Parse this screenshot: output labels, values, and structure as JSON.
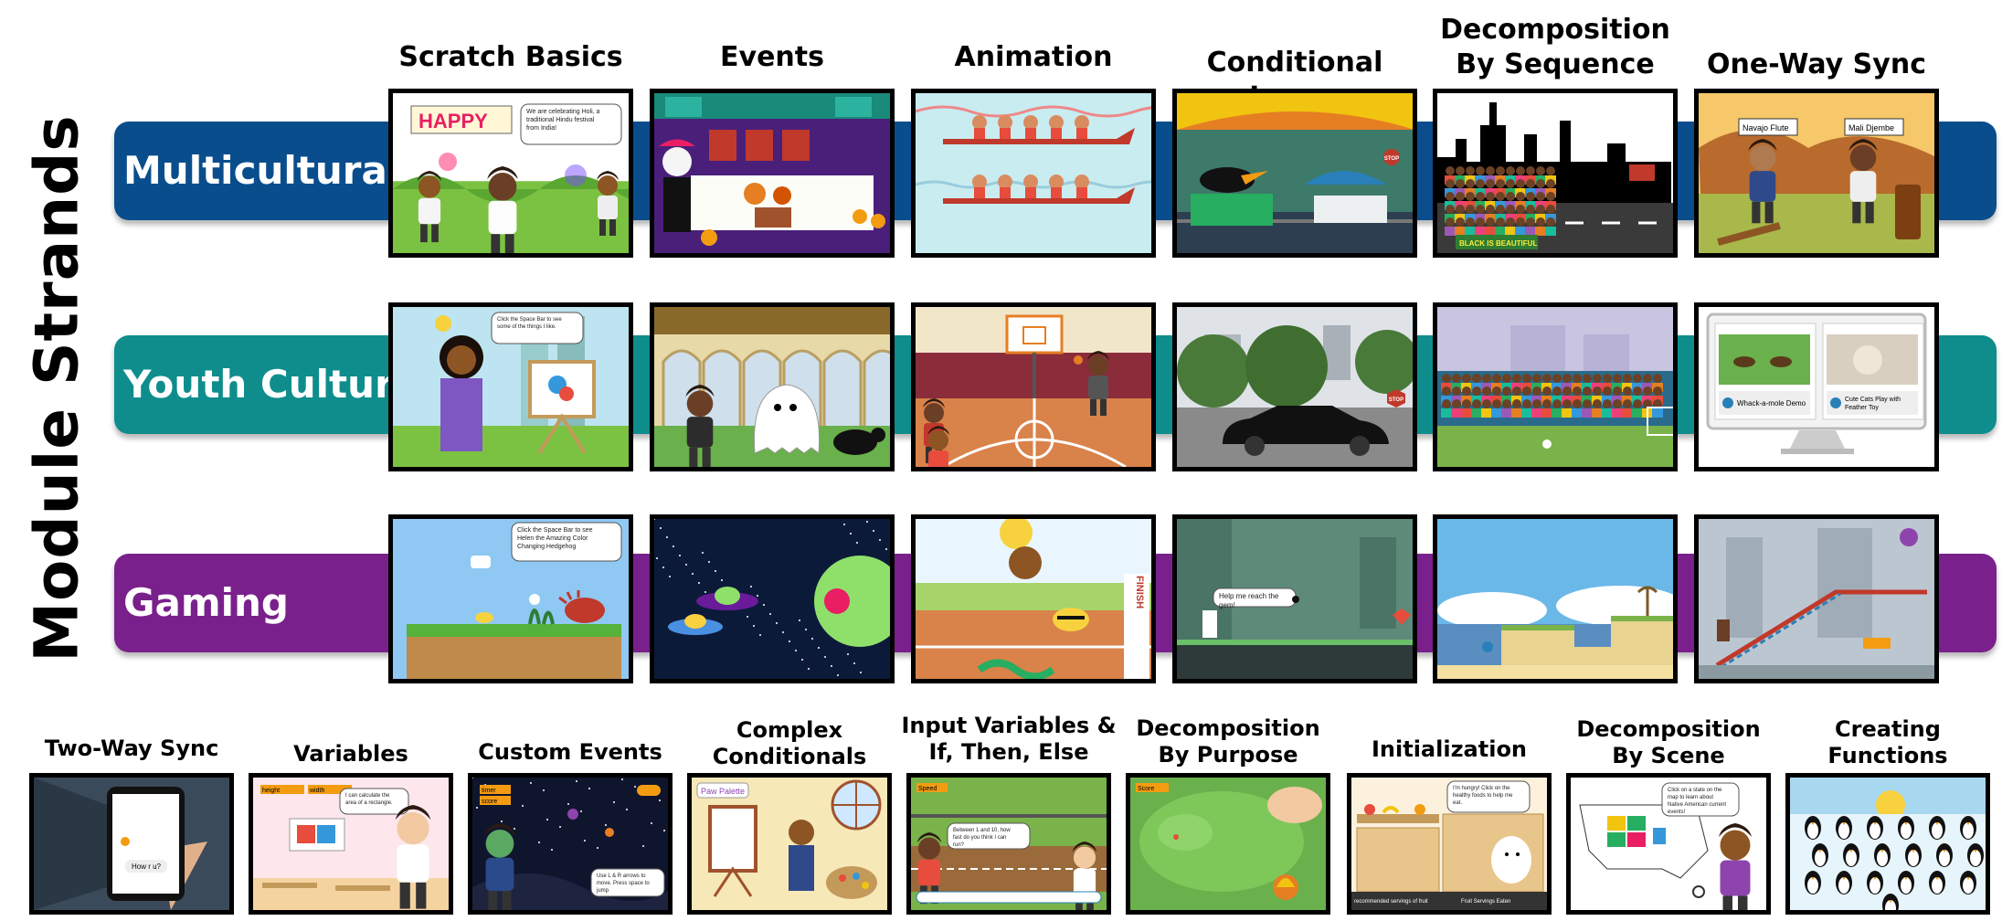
{
  "vertical_title": "Module Strands",
  "columns": [
    [
      "Scratch Basics"
    ],
    [
      "Events"
    ],
    [
      "Animation"
    ],
    [
      "Conditional Loops"
    ],
    [
      "Decomposition",
      "By Sequence"
    ],
    [
      "One-Way Sync"
    ]
  ],
  "strands": [
    {
      "label": "Multicultural",
      "color": "#0a4d8c",
      "cells": [
        {
          "scene": "holi",
          "texts": [
            "HAPPY",
            "We are celebrating Holi, a traditional Hindu festival from India!"
          ]
        },
        {
          "scene": "dia-de-muertos",
          "texts": []
        },
        {
          "scene": "dragon-boats",
          "texts": []
        },
        {
          "scene": "parade-float",
          "texts": [
            "STOP"
          ]
        },
        {
          "scene": "city-march",
          "texts": [
            "BLACK IS BEAUTIFUL"
          ]
        },
        {
          "scene": "instruments",
          "texts": [
            "Navajo Flute",
            "Mali Djembe"
          ]
        }
      ]
    },
    {
      "label": "Youth Culture",
      "color": "#0f8d8d",
      "cells": [
        {
          "scene": "painter",
          "texts": [
            "Click the Space Bar to see some of the things I like."
          ]
        },
        {
          "scene": "halloween",
          "texts": []
        },
        {
          "scene": "basketball",
          "texts": []
        },
        {
          "scene": "car-street",
          "texts": [
            "STOP"
          ]
        },
        {
          "scene": "stadium",
          "texts": []
        },
        {
          "scene": "monitor",
          "texts": [
            "Whack-a-mole Demo",
            "Cute Cats Play with Feather Toy"
          ]
        }
      ]
    },
    {
      "label": "Gaming",
      "color": "#7a208c",
      "cells": [
        {
          "scene": "hedgehog",
          "texts": [
            "Click the Space Bar to see Helen the Amazing Color Changing Hedgehog"
          ]
        },
        {
          "scene": "space-ufo",
          "texts": []
        },
        {
          "scene": "race",
          "texts": [
            "FINISH"
          ]
        },
        {
          "scene": "platform-cave",
          "texts": [
            "Help me reach the gem!"
          ]
        },
        {
          "scene": "beach-platform",
          "texts": []
        },
        {
          "scene": "ramp-game",
          "texts": []
        }
      ]
    }
  ],
  "bottom_modules": [
    {
      "title": [
        "Two-Way Sync"
      ],
      "scene": "phone",
      "texts": [
        "How r u?"
      ]
    },
    {
      "title": [
        "Variables"
      ],
      "scene": "classroom",
      "texts": [
        "height",
        "width",
        "I can calculate the area of a rectangle."
      ]
    },
    {
      "title": [
        "Custom Events"
      ],
      "scene": "night-zombie",
      "texts": [
        "timer",
        "score",
        "Use L & R arrows to move. Press space to jump"
      ]
    },
    {
      "title": [
        "Complex",
        "Conditionals"
      ],
      "scene": "paint-studio",
      "texts": [
        "Paw Palette"
      ]
    },
    {
      "title": [
        "Input Variables &",
        "If, Then, Else"
      ],
      "scene": "guess-game",
      "texts": [
        "Speed",
        "Between 1 and 10, how fast do you think I can run?"
      ]
    },
    {
      "title": [
        "Decomposition",
        "By Purpose"
      ],
      "scene": "golf-dragon",
      "texts": [
        "Score"
      ]
    },
    {
      "title": [
        "Initialization"
      ],
      "scene": "kitchen-dog",
      "texts": [
        "I'm hungry! Click on the healthy foods to help me eat.",
        "recommended servings of fruit",
        "Fruit Servings Eaten"
      ]
    },
    {
      "title": [
        "Decomposition",
        "By Scene"
      ],
      "scene": "us-map",
      "texts": [
        "Click on a state on the map to learn about Native American current events!"
      ]
    },
    {
      "title": [
        "Creating",
        "Functions"
      ],
      "scene": "penguins",
      "texts": []
    }
  ]
}
